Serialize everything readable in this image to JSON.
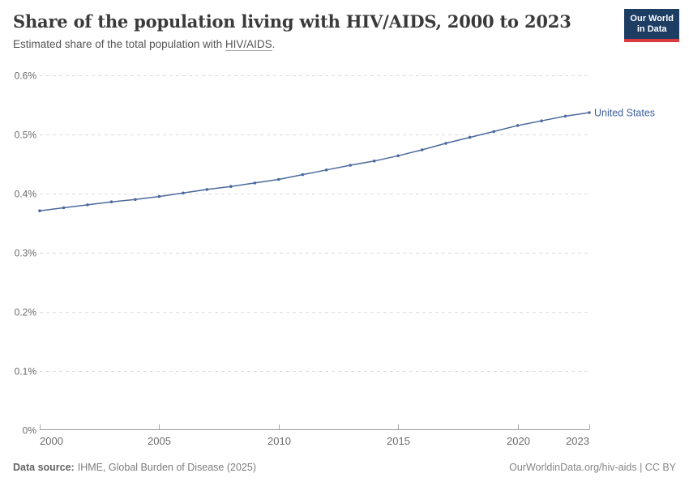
{
  "header": {
    "title": "Share of the population living with HIV/AIDS, 2000 to 2023",
    "subtitle_prefix": "Estimated share of the total population with ",
    "subtitle_term": "HIV/AIDS",
    "subtitle_suffix": "."
  },
  "logo": {
    "line1": "Our World",
    "line2": "in Data",
    "bg_color": "#1d3d63",
    "accent_color": "#d93a3e"
  },
  "chart_data": {
    "type": "line",
    "title": "Share of the population living with HIV/AIDS, 2000 to 2023",
    "xlabel": "",
    "ylabel": "",
    "xlim": [
      2000,
      2023
    ],
    "ylim": [
      0,
      0.6
    ],
    "x_ticks": [
      2000,
      2005,
      2010,
      2015,
      2020,
      2023
    ],
    "y_ticks": [
      0,
      0.1,
      0.2,
      0.3,
      0.4,
      0.5,
      0.6
    ],
    "y_tick_suffix": "%",
    "grid": "horizontal-dashed",
    "legend_position": "end-of-line",
    "x": [
      2000,
      2001,
      2002,
      2003,
      2004,
      2005,
      2006,
      2007,
      2008,
      2009,
      2010,
      2011,
      2012,
      2013,
      2014,
      2015,
      2016,
      2017,
      2018,
      2019,
      2020,
      2021,
      2022,
      2023
    ],
    "series": [
      {
        "name": "United States",
        "color": "#4c6a9c",
        "values": [
          0.371,
          0.376,
          0.381,
          0.386,
          0.39,
          0.395,
          0.401,
          0.407,
          0.412,
          0.418,
          0.424,
          0.432,
          0.44,
          0.448,
          0.455,
          0.464,
          0.474,
          0.485,
          0.495,
          0.505,
          0.515,
          0.523,
          0.531,
          0.537
        ]
      }
    ],
    "end_label": {
      "text": "United States",
      "color": "#3d5f9f"
    }
  },
  "footer": {
    "source_label": "Data source:",
    "source_text": "IHME, Global Burden of Disease (2025)",
    "credit": "OurWorldinData.org/hiv-aids | CC BY"
  }
}
